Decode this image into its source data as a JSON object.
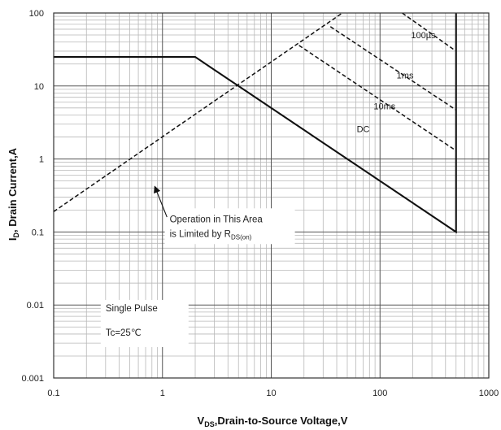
{
  "chart_data": {
    "type": "line",
    "x_scale": "log",
    "y_scale": "log",
    "xlim": [
      0.1,
      1000
    ],
    "ylim": [
      0.001,
      100
    ],
    "grid": true,
    "x_ticks": [
      "0.1",
      "1",
      "10",
      "100",
      "1000"
    ],
    "y_ticks": [
      "0.001",
      "0.01",
      "0.1",
      "1",
      "10",
      "100"
    ],
    "xlabel": {
      "main": "V",
      "sub": "DS",
      "rest": ",Drain-to-Source Voltage,V"
    },
    "ylabel": {
      "main": "I",
      "sub": "D",
      "rest": ", Drain Current,A"
    },
    "series": [
      {
        "name": "DC",
        "style": "solid",
        "points": [
          [
            0.1,
            25
          ],
          [
            2.0,
            25
          ],
          [
            500,
            0.1
          ],
          [
            500,
            100
          ]
        ]
      },
      {
        "name": "100µs",
        "style": "dashed",
        "points": [
          [
            160,
            100
          ],
          [
            500,
            30
          ],
          [
            500,
            0.1
          ]
        ]
      },
      {
        "name": "1ms",
        "style": "dashed",
        "points": [
          [
            35,
            65
          ],
          [
            500,
            4.7
          ]
        ]
      },
      {
        "name": "10ms",
        "style": "dashed",
        "points": [
          [
            18,
            36
          ],
          [
            500,
            1.3
          ]
        ]
      },
      {
        "name": "",
        "style": "dashed",
        "points": [
          [
            0.1,
            0.19
          ],
          [
            45,
            100
          ]
        ]
      }
    ],
    "series_label_positions": [
      {
        "text": "100µs",
        "x": 250,
        "y": 50
      },
      {
        "text": "1ms",
        "x": 170,
        "y": 14
      },
      {
        "text": "10ms",
        "x": 110,
        "y": 5.3
      },
      {
        "text": "DC",
        "x": 70,
        "y": 2.6
      }
    ],
    "annotations": {
      "rds_note": {
        "line1": "Operation in This Area",
        "line2_main": "is Limited by R",
        "line2_sub": "DS(on)",
        "arrow_from": [
          1.1,
          0.16
        ],
        "arrow_to": [
          0.85,
          0.42
        ],
        "text_at": [
          1.05,
          0.12
        ]
      },
      "conditions": {
        "line1": "Single Pulse",
        "line2": "Tc=25℃",
        "text_at": [
          0.3,
          0.0082
        ]
      }
    }
  }
}
